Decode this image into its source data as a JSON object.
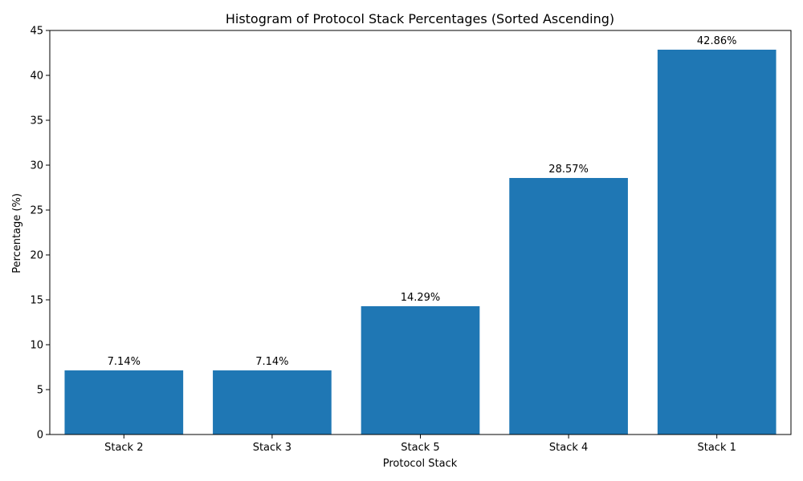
{
  "chart_data": {
    "type": "bar",
    "title": "Histogram of Protocol Stack Percentages (Sorted Ascending)",
    "xlabel": "Protocol Stack",
    "ylabel": "Percentage (%)",
    "categories": [
      "Stack 2",
      "Stack 3",
      "Stack 5",
      "Stack 4",
      "Stack 1"
    ],
    "values": [
      7.14,
      7.14,
      14.29,
      28.57,
      42.86
    ],
    "data_labels": [
      "7.14%",
      "7.14%",
      "14.29%",
      "28.57%",
      "42.86%"
    ],
    "ylim": [
      0,
      45
    ],
    "yticks": [
      0,
      5,
      10,
      15,
      20,
      25,
      30,
      35,
      40,
      45
    ],
    "bar_color": "#1f77b4",
    "grid": false,
    "legend": "none"
  }
}
